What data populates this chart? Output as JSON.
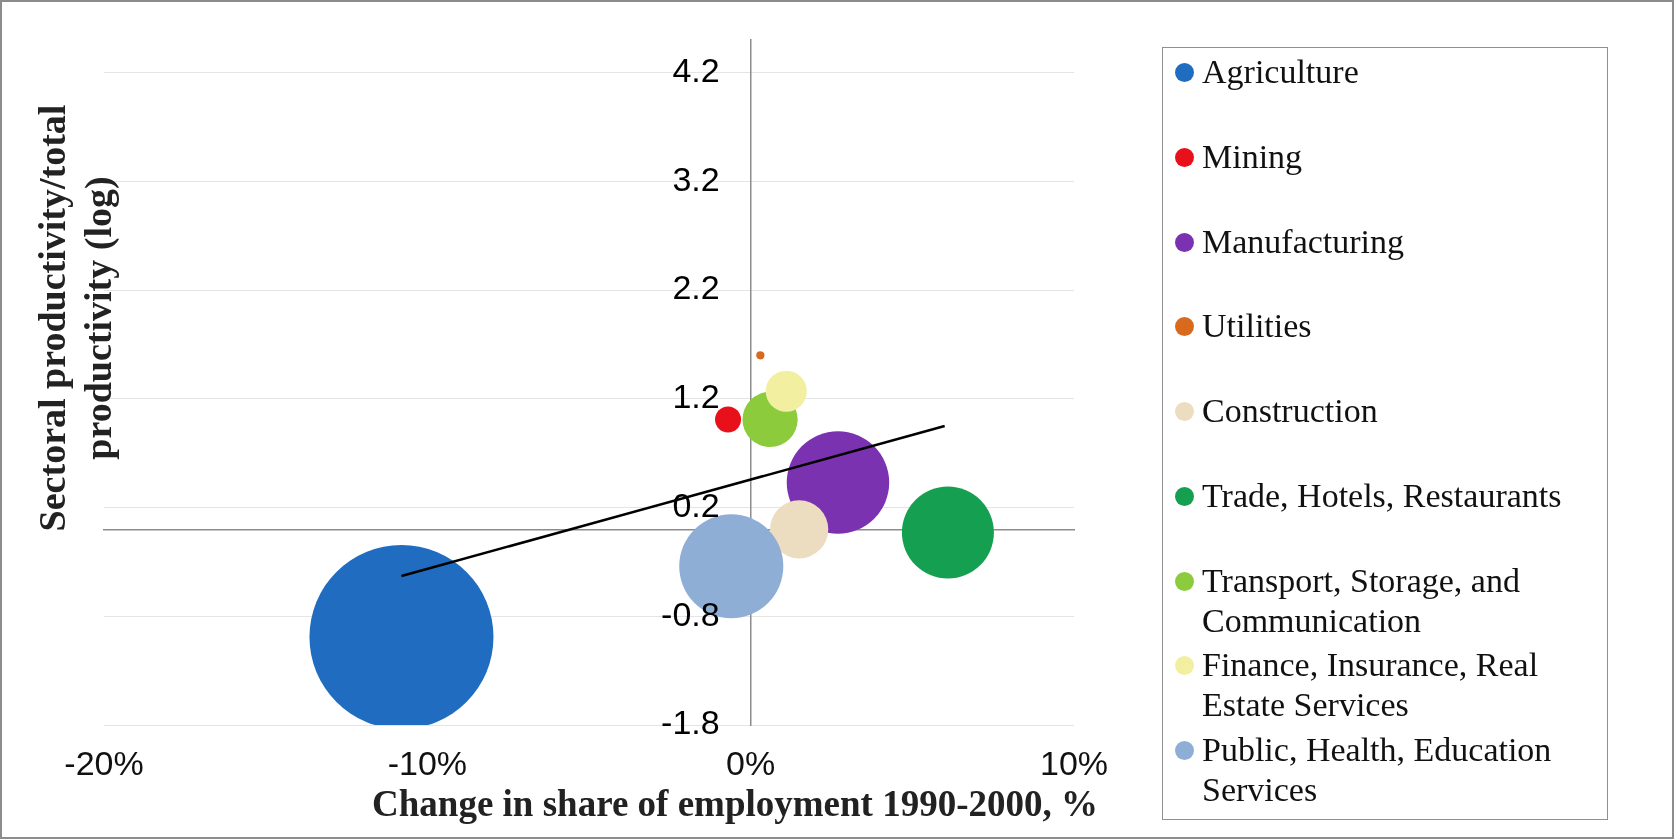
{
  "chart_data": {
    "type": "bubble",
    "xlabel": "Change in share of employment 1990-2000, %",
    "ylabel": "Sectoral productivity/total productivity (log)",
    "xlim": [
      -20,
      10
    ],
    "xticks": [
      {
        "value": -20,
        "label": "-20%"
      },
      {
        "value": -10,
        "label": "-10%"
      },
      {
        "value": 0,
        "label": "0%"
      },
      {
        "value": 10,
        "label": "10%"
      }
    ],
    "ylim": [
      -1.8,
      4.5
    ],
    "yticks": [
      -1.8,
      -0.8,
      0.2,
      1.2,
      2.2,
      3.2,
      4.2
    ],
    "grid": "y",
    "legend": "right",
    "series": [
      {
        "name": "Agriculture",
        "color": "#1f6cc0",
        "x": [
          -10.8
        ],
        "values": [
          -0.99
        ],
        "sizes": [
          1
        ]
      },
      {
        "name": "Mining",
        "color": "#e8101a",
        "x": [
          -0.7
        ],
        "values": [
          1.01
        ],
        "sizes": [
          0.02
        ]
      },
      {
        "name": "Manufacturing",
        "color": "#7b32b0",
        "x": [
          2.7
        ],
        "values": [
          0.43
        ],
        "sizes": [
          0.31
        ]
      },
      {
        "name": "Utilities",
        "color": "#d9691c",
        "x": [
          0.3
        ],
        "values": [
          1.6
        ],
        "sizes": [
          0.002
        ]
      },
      {
        "name": "Construction",
        "color": "#ecdcc0",
        "x": [
          1.5
        ],
        "values": [
          0.0
        ],
        "sizes": [
          0.1
        ]
      },
      {
        "name": "Trade, Hotels, Restaurants",
        "color": "#14a050",
        "x": [
          6.1
        ],
        "values": [
          -0.03
        ],
        "sizes": [
          0.25
        ]
      },
      {
        "name": "Transport, Storage, and Communication",
        "color": "#8ccc3c",
        "x": [
          0.6
        ],
        "values": [
          1.01
        ],
        "sizes": [
          0.09
        ]
      },
      {
        "name": "Finance, Insurance, Real Estate Services",
        "color": "#f2f0a0",
        "x": [
          1.1
        ],
        "values": [
          1.27
        ],
        "sizes": [
          0.05
        ]
      },
      {
        "name": "Public, Health, Education Services",
        "color": "#8eaed6",
        "x": [
          -0.6
        ],
        "values": [
          -0.34
        ],
        "sizes": [
          0.32
        ]
      },
      {
        "type": "line",
        "color": "#000000",
        "x": [
          -10.8,
          6.0
        ],
        "values": [
          -0.43,
          0.95
        ],
        "marker": "none"
      }
    ]
  }
}
